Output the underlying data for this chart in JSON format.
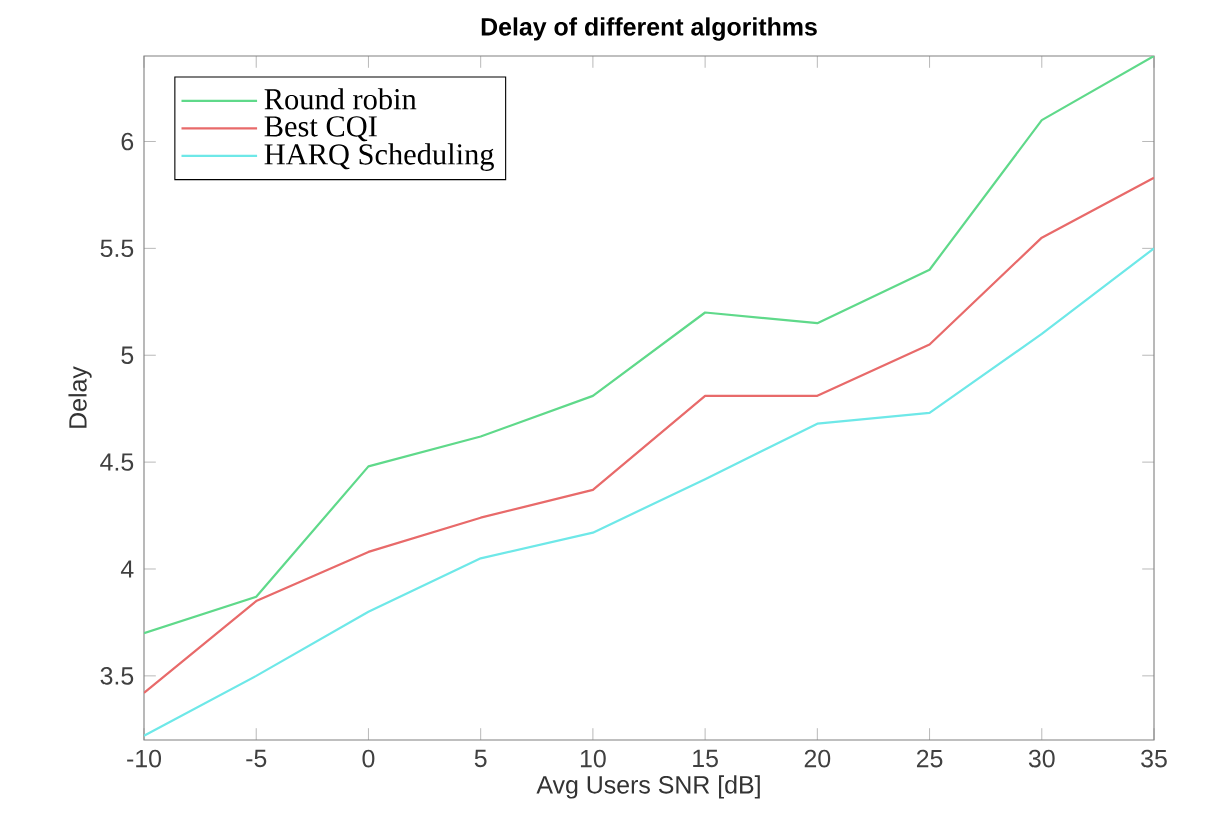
{
  "chart_data": {
    "type": "line",
    "title": "Delay of different algorithms",
    "xlabel": "Avg Users SNR [dB]",
    "ylabel": "Delay",
    "x": [
      -10,
      -5,
      0,
      5,
      10,
      15,
      20,
      25,
      30,
      35
    ],
    "series": [
      {
        "name": "Round robin",
        "color": "#5fd98a",
        "values": [
          3.7,
          3.87,
          4.48,
          4.62,
          4.81,
          5.2,
          5.15,
          5.4,
          6.1,
          6.4
        ]
      },
      {
        "name": "Best CQI",
        "color": "#e86a6a",
        "values": [
          3.42,
          3.85,
          4.08,
          4.24,
          4.37,
          4.81,
          4.81,
          5.05,
          5.55,
          5.83
        ]
      },
      {
        "name": "HARQ Scheduling",
        "color": "#6ee8e8",
        "values": [
          3.22,
          3.5,
          3.8,
          4.05,
          4.17,
          4.42,
          4.68,
          4.73,
          5.1,
          5.5
        ]
      }
    ],
    "xlim": [
      -10,
      35
    ],
    "ylim": [
      3.2,
      6.4
    ],
    "xticks": [
      -10,
      -5,
      0,
      5,
      10,
      15,
      20,
      25,
      30,
      35
    ],
    "yticks": [
      3.5,
      4,
      4.5,
      5,
      5.5,
      6
    ],
    "legend": "top left",
    "grid": false
  }
}
